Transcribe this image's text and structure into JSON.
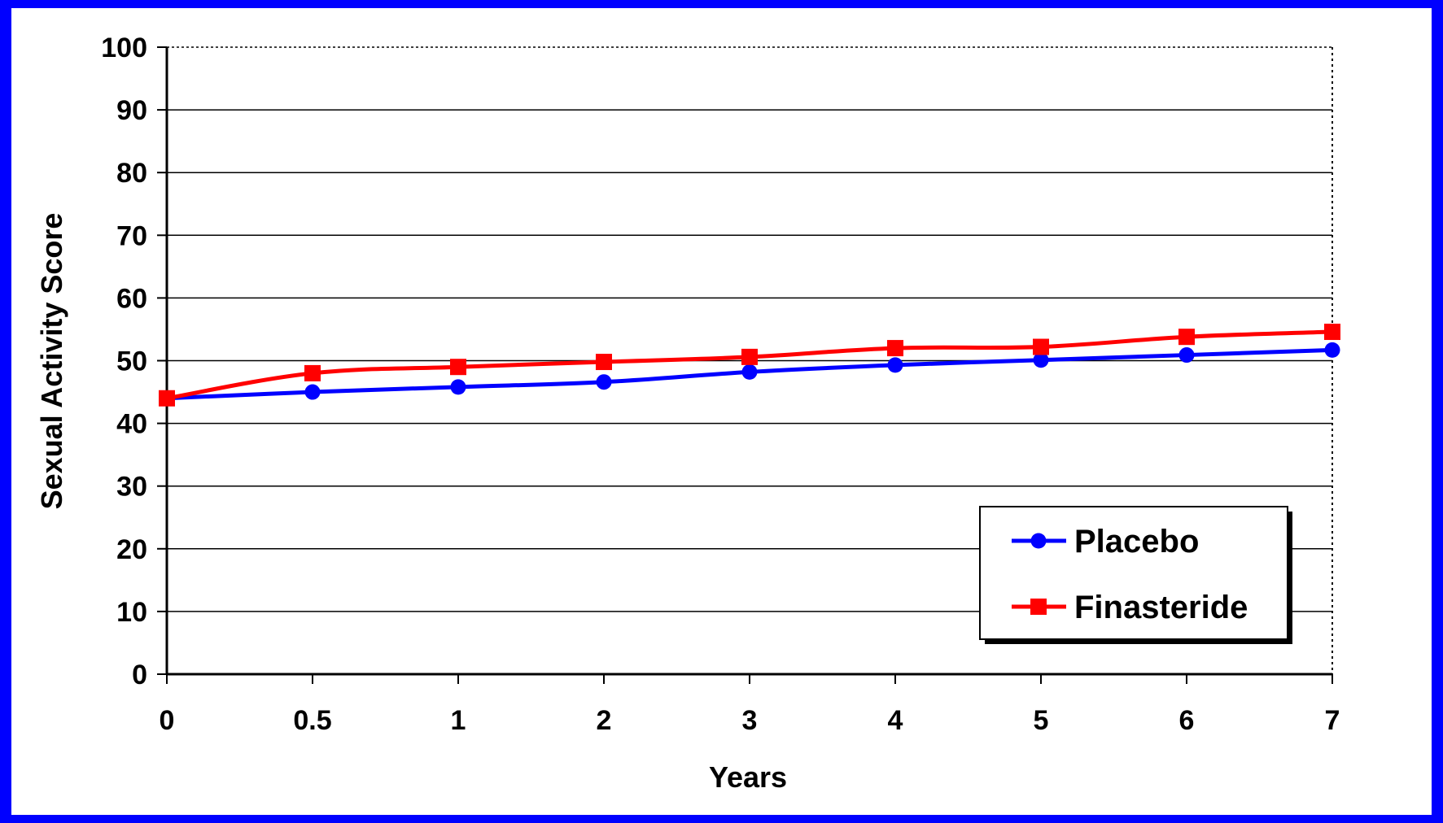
{
  "chart_data": {
    "type": "line",
    "title": "",
    "xlabel": "Years",
    "ylabel": "Sexual Activity Score",
    "categories": [
      "0",
      "0.5",
      "1",
      "2",
      "3",
      "4",
      "5",
      "6",
      "7"
    ],
    "ylim": [
      0,
      100
    ],
    "yticks": [
      "0",
      "10",
      "20",
      "30",
      "40",
      "50",
      "60",
      "70",
      "80",
      "90",
      "100"
    ],
    "grid": true,
    "legend_position": "bottom-right",
    "series": [
      {
        "name": "Placebo",
        "color": "#0000ff",
        "marker": "circle",
        "values": [
          44,
          45,
          45.8,
          46.6,
          48.2,
          49.3,
          50.1,
          50.9,
          51.7
        ]
      },
      {
        "name": "Finasteride",
        "color": "#ff0000",
        "marker": "square",
        "values": [
          44,
          48,
          49,
          49.8,
          50.6,
          52,
          52.2,
          53.8,
          54.6
        ]
      }
    ]
  }
}
